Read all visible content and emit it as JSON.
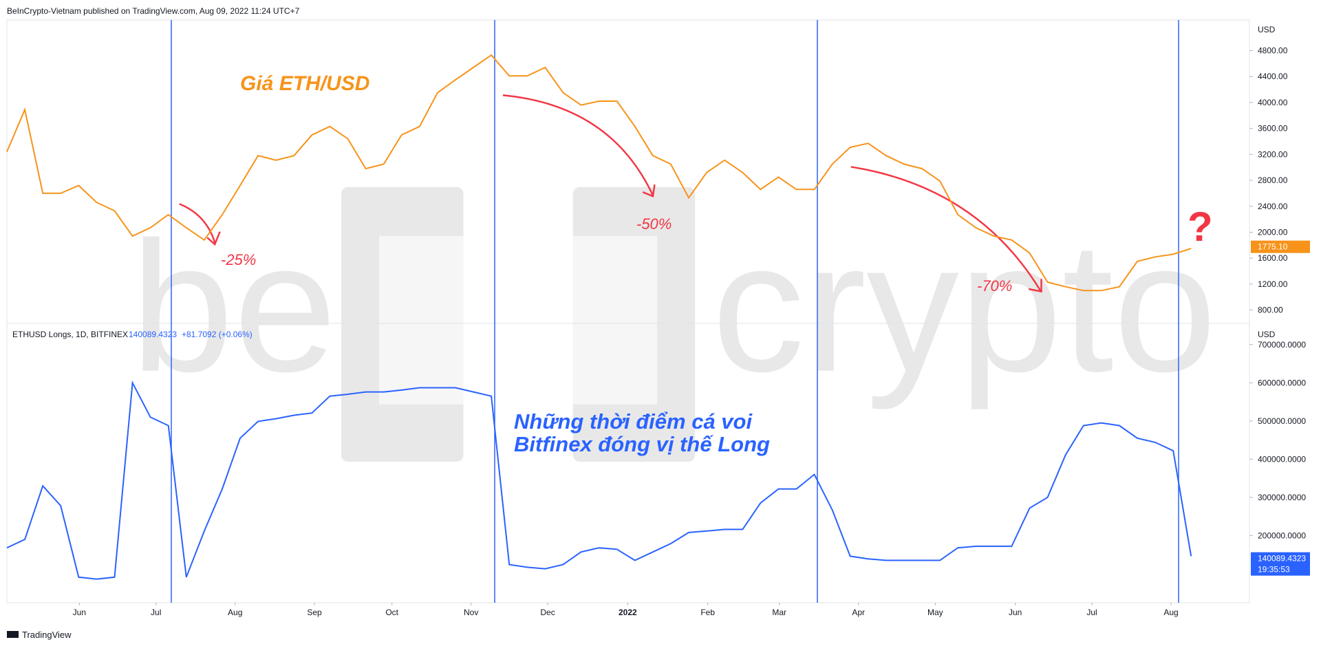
{
  "header": "BeInCrypto-Vietnam published on TradingView.com, Aug 09, 2022 11:24 UTC+7",
  "footer": "TradingView",
  "watermark": [
    "be",
    "crypto"
  ],
  "chart_data": [
    {
      "type": "line",
      "axis_unit": "USD",
      "label": "Giá ETH/USD",
      "annotations": [
        "-25%",
        "-50%",
        "-70%",
        "?"
      ],
      "xlim": [
        0,
        69.25
      ],
      "ylim": [
        605,
        5272
      ],
      "yticks": [
        {
          "value": 800,
          "label": "800.00"
        },
        {
          "value": 1200,
          "label": "1200.00"
        },
        {
          "value": 1600,
          "label": "1600.00"
        },
        {
          "value": 2000,
          "label": "2000.00"
        },
        {
          "value": 2400,
          "label": "2400.00"
        },
        {
          "value": 2800,
          "label": "2800.00"
        },
        {
          "value": 3200,
          "label": "3200.00"
        },
        {
          "value": 3600,
          "label": "3600.00"
        },
        {
          "value": 4000,
          "label": "4000.00"
        },
        {
          "value": 4400,
          "label": "4400.00"
        },
        {
          "value": 4800,
          "label": "4800.00"
        }
      ],
      "last_value": {
        "value": 1775.1,
        "label": "1775.10"
      },
      "series": [
        {
          "name": "ETHUSD",
          "color": "#f7931a",
          "values": [
            3240,
            3890,
            2600,
            2600,
            2720,
            2460,
            2330,
            1940,
            2070,
            2270,
            2070,
            1880,
            2270,
            2720,
            3180,
            3110,
            3180,
            3500,
            3630,
            3440,
            2980,
            3050,
            3500,
            3630,
            4150,
            4350,
            4540,
            4730,
            4410,
            4410,
            4540,
            4150,
            3960,
            4020,
            4020,
            3630,
            3180,
            3050,
            2530,
            2920,
            3110,
            2920,
            2660,
            2850,
            2660,
            2660,
            3050,
            3310,
            3370,
            3180,
            3050,
            2980,
            2790,
            2270,
            2070,
            1940,
            1880,
            1680,
            1230,
            1160,
            1100,
            1100,
            1160,
            1550,
            1620,
            1660,
            1750
          ]
        }
      ]
    },
    {
      "type": "line",
      "axis_unit": "USD",
      "legend_title": "ETHUSD Longs, 1D, BITFINEX",
      "legend_change": "+81.7092 (+0.06%)",
      "annotation": [
        "Những thời điểm cá voi",
        "Bitfinex đóng vị thế Long"
      ],
      "last_time": "19:35:53",
      "xlim": [
        0,
        69.25
      ],
      "ylim": [
        24000,
        753700
      ],
      "xticks": [
        {
          "value": 4.04,
          "label": "Jun"
        },
        {
          "value": 8.31,
          "label": "Jul"
        },
        {
          "value": 12.72,
          "label": "Aug"
        },
        {
          "value": 17.14,
          "label": "Sep"
        },
        {
          "value": 21.46,
          "label": "Oct"
        },
        {
          "value": 25.87,
          "label": "Nov"
        },
        {
          "value": 30.14,
          "label": "Dec"
        },
        {
          "value": 34.6,
          "label": "2022"
        },
        {
          "value": 39.06,
          "label": "Feb"
        },
        {
          "value": 43.05,
          "label": "Mar"
        },
        {
          "value": 47.46,
          "label": "Apr"
        },
        {
          "value": 51.74,
          "label": "May"
        },
        {
          "value": 56.2,
          "label": "Jun"
        },
        {
          "value": 60.47,
          "label": "Jul"
        },
        {
          "value": 64.88,
          "label": "Aug"
        }
      ],
      "yticks": [
        {
          "value": 200000,
          "label": "200000.0000"
        },
        {
          "value": 300000,
          "label": "300000.0000"
        },
        {
          "value": 400000,
          "label": "400000.0000"
        },
        {
          "value": 500000,
          "label": "500000.0000"
        },
        {
          "value": 600000,
          "label": "600000.0000"
        },
        {
          "value": 700000,
          "label": "700000.0000"
        }
      ],
      "last_value": 140089.4323,
      "series": [
        {
          "name": "ETHUSD Longs",
          "color": "#2962ff",
          "values": [
            168000,
            190000,
            330000,
            278000,
            91000,
            86000,
            91000,
            600000,
            510000,
            488000,
            91000,
            212000,
            322000,
            455000,
            499000,
            506000,
            515000,
            521000,
            565000,
            570000,
            576000,
            576000,
            581000,
            587000,
            587000,
            587000,
            576000,
            565000,
            124000,
            117000,
            113000,
            124000,
            157000,
            168000,
            164000,
            135000,
            157000,
            179000,
            208000,
            212000,
            216000,
            216000,
            285000,
            322000,
            322000,
            360000,
            267000,
            146000,
            139000,
            135000,
            135000,
            135000,
            135000,
            168000,
            172000,
            172000,
            172000,
            272000,
            300000,
            411000,
            488000,
            495000,
            488000,
            455000,
            444000,
            422000,
            146000
          ]
        }
      ]
    }
  ]
}
